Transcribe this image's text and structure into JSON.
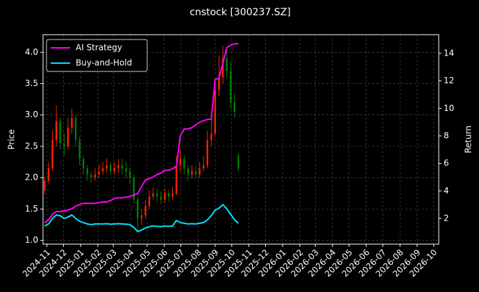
{
  "chart_data": {
    "type": "candlestick",
    "title": "cnstock [300237.SZ]",
    "ylabel": "Price",
    "y2label": "Return",
    "x": [
      "2024-10-28",
      "2024-11-04",
      "2024-11-11",
      "2024-11-18",
      "2024-11-25",
      "2024-12-02",
      "2024-12-09",
      "2024-12-16",
      "2024-12-23",
      "2024-12-30",
      "2025-01-06",
      "2025-01-13",
      "2025-01-20",
      "2025-01-27",
      "2025-02-03",
      "2025-02-10",
      "2025-02-17",
      "2025-02-24",
      "2025-03-03",
      "2025-03-10",
      "2025-03-17",
      "2025-03-24",
      "2025-03-31",
      "2025-04-07",
      "2025-04-14",
      "2025-04-21",
      "2025-04-28",
      "2025-05-05",
      "2025-05-12",
      "2025-05-19",
      "2025-05-26",
      "2025-06-02",
      "2025-06-09",
      "2025-06-16",
      "2025-06-23",
      "2025-06-30",
      "2025-07-07",
      "2025-07-14",
      "2025-07-21",
      "2025-07-28",
      "2025-08-04",
      "2025-08-11",
      "2025-08-18",
      "2025-08-25",
      "2025-09-01",
      "2025-09-08",
      "2025-09-15",
      "2025-09-22",
      "2025-09-29",
      "2025-10-06",
      "2025-10-13"
    ],
    "open": [
      1.8,
      1.95,
      2.15,
      2.6,
      2.9,
      2.55,
      2.5,
      2.8,
      2.95,
      2.6,
      2.3,
      2.15,
      2.05,
      2.0,
      2.05,
      2.1,
      2.15,
      2.2,
      2.1,
      2.15,
      2.2,
      2.15,
      2.1,
      2.0,
      1.65,
      1.35,
      1.4,
      1.55,
      1.7,
      1.75,
      1.7,
      1.65,
      1.75,
      1.7,
      1.75,
      2.2,
      2.3,
      2.15,
      2.05,
      2.1,
      2.05,
      2.15,
      2.2,
      2.6,
      2.7,
      3.4,
      3.6,
      3.9,
      3.7,
      3.2,
      2.35
    ],
    "high": [
      2.0,
      2.25,
      2.75,
      3.15,
      2.95,
      2.7,
      2.95,
      3.1,
      3.0,
      2.65,
      2.35,
      2.2,
      2.1,
      2.15,
      2.2,
      2.25,
      2.3,
      2.25,
      2.25,
      2.3,
      2.3,
      2.25,
      2.15,
      2.05,
      1.7,
      1.5,
      1.65,
      1.8,
      1.85,
      1.82,
      1.78,
      1.82,
      1.8,
      1.85,
      2.35,
      2.45,
      2.35,
      2.2,
      2.2,
      2.18,
      2.25,
      2.35,
      2.75,
      2.95,
      3.55,
      3.95,
      4.1,
      4.05,
      3.85,
      3.35,
      2.4
    ],
    "low": [
      1.75,
      1.9,
      2.1,
      2.5,
      2.45,
      2.35,
      2.45,
      2.7,
      2.5,
      2.2,
      2.05,
      1.95,
      1.92,
      1.95,
      2.0,
      2.05,
      2.08,
      2.05,
      2.05,
      2.08,
      2.05,
      2.0,
      1.9,
      1.6,
      1.15,
      1.25,
      1.35,
      1.5,
      1.65,
      1.62,
      1.58,
      1.6,
      1.62,
      1.65,
      1.72,
      2.1,
      2.05,
      1.95,
      1.98,
      1.98,
      2.0,
      2.1,
      2.15,
      2.5,
      2.65,
      3.3,
      3.5,
      3.6,
      3.1,
      2.95,
      2.1
    ],
    "close": [
      1.95,
      2.15,
      2.6,
      2.9,
      2.55,
      2.5,
      2.8,
      2.95,
      2.6,
      2.3,
      2.15,
      2.05,
      2.0,
      2.05,
      2.1,
      2.15,
      2.2,
      2.1,
      2.15,
      2.2,
      2.15,
      2.1,
      2.0,
      1.65,
      1.35,
      1.4,
      1.55,
      1.7,
      1.75,
      1.7,
      1.65,
      1.75,
      1.7,
      1.75,
      2.2,
      2.3,
      2.15,
      2.05,
      2.1,
      2.05,
      2.15,
      2.2,
      2.6,
      2.7,
      3.4,
      3.6,
      3.9,
      3.7,
      3.2,
      3.05,
      2.15
    ],
    "up_color": "#ff2200",
    "down_color": "#008000",
    "series": [
      {
        "name": "AI Strategy",
        "color": "#ff00ff",
        "axis": "y2",
        "values": [
          1.7,
          1.9,
          2.3,
          2.5,
          2.5,
          2.55,
          2.6,
          2.7,
          2.9,
          3.0,
          3.1,
          3.1,
          3.1,
          3.1,
          3.15,
          3.2,
          3.2,
          3.3,
          3.45,
          3.5,
          3.5,
          3.55,
          3.6,
          3.7,
          3.8,
          4.3,
          4.8,
          4.9,
          5.0,
          5.2,
          5.3,
          5.5,
          5.5,
          5.6,
          5.8,
          8.0,
          8.5,
          8.5,
          8.6,
          8.8,
          9.0,
          9.1,
          9.2,
          9.2,
          12.1,
          12.2,
          13.3,
          14.4,
          14.6,
          14.7,
          14.7
        ]
      },
      {
        "name": "Buy-and-Hold",
        "color": "#00e5ff",
        "axis": "y2",
        "values": [
          1.45,
          1.6,
          2.0,
          2.25,
          2.2,
          2.0,
          2.1,
          2.25,
          2.0,
          1.8,
          1.7,
          1.6,
          1.55,
          1.6,
          1.6,
          1.6,
          1.62,
          1.58,
          1.6,
          1.62,
          1.6,
          1.58,
          1.55,
          1.35,
          1.05,
          1.15,
          1.3,
          1.4,
          1.45,
          1.42,
          1.4,
          1.45,
          1.42,
          1.45,
          1.85,
          1.7,
          1.65,
          1.6,
          1.62,
          1.6,
          1.65,
          1.7,
          1.9,
          2.2,
          2.6,
          2.75,
          3.0,
          2.7,
          2.3,
          1.9,
          1.65
        ]
      }
    ],
    "xlim": [
      "2024-10-25",
      "2026-10-10"
    ],
    "xticks": [
      "2024-11",
      "2024-12",
      "2025-01",
      "2025-02",
      "2025-03",
      "2025-04",
      "2025-05",
      "2025-06",
      "2025-07",
      "2025-08",
      "2025-09",
      "2025-10",
      "2025-11",
      "2025-12",
      "2026-01",
      "2026-02",
      "2026-03",
      "2026-04",
      "2026-05",
      "2026-06",
      "2026-07",
      "2026-08",
      "2026-09",
      "2026-10"
    ],
    "ylim": [
      0.94,
      4.28
    ],
    "yticks": [
      {
        "value": 1,
        "label": "1.0"
      },
      1.5,
      {
        "value": 2,
        "label": "2.0"
      },
      2.5,
      {
        "value": 3,
        "label": "3.0"
      },
      3.5,
      {
        "value": 4,
        "label": "4.0"
      }
    ],
    "y2lim": [
      0.13,
      15.36
    ],
    "y2ticks": [
      2,
      4,
      6,
      8,
      10,
      12,
      14
    ],
    "grid": true,
    "legend": "upper-left"
  }
}
